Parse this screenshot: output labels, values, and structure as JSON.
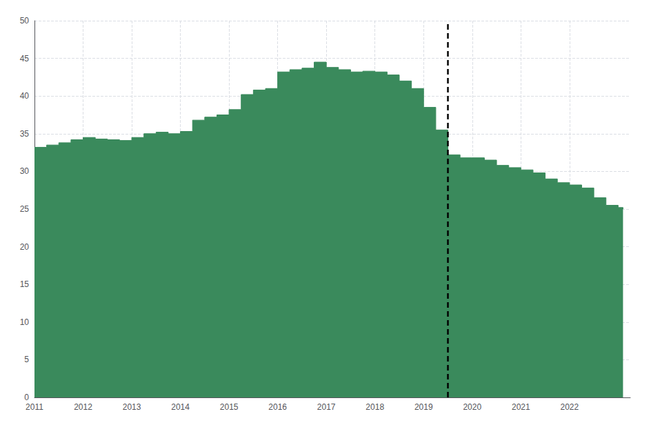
{
  "chart_data": {
    "type": "area",
    "line_style": "step",
    "color": "#3a8a5c",
    "x": [
      2011.0,
      2011.25,
      2011.5,
      2011.75,
      2012.0,
      2012.25,
      2012.5,
      2012.75,
      2013.0,
      2013.25,
      2013.5,
      2013.75,
      2014.0,
      2014.25,
      2014.5,
      2014.75,
      2015.0,
      2015.25,
      2015.5,
      2015.75,
      2016.0,
      2016.25,
      2016.5,
      2016.75,
      2017.0,
      2017.25,
      2017.5,
      2017.75,
      2018.0,
      2018.25,
      2018.5,
      2018.75,
      2019.0,
      2019.25,
      2019.5,
      2019.75,
      2020.0,
      2020.25,
      2020.5,
      2020.75,
      2021.0,
      2021.25,
      2021.5,
      2021.75,
      2022.0,
      2022.25,
      2022.5,
      2022.75,
      2023.0,
      2023.1
    ],
    "values": [
      33.2,
      33.5,
      33.8,
      34.2,
      34.5,
      34.3,
      34.2,
      34.1,
      34.5,
      35.0,
      35.2,
      35.0,
      35.3,
      36.8,
      37.2,
      37.5,
      38.2,
      40.2,
      40.8,
      41.0,
      43.2,
      43.5,
      43.7,
      44.5,
      43.8,
      43.5,
      43.2,
      43.3,
      43.2,
      42.8,
      42.0,
      41.0,
      38.5,
      35.5,
      32.2,
      31.8,
      31.8,
      31.5,
      30.8,
      30.5,
      30.2,
      29.8,
      29.0,
      28.5,
      28.2,
      27.8,
      26.5,
      25.5,
      25.2,
      25.0
    ],
    "vline": 2019.5,
    "xlim": [
      2011.0,
      2023.25
    ],
    "xticks": [
      2011,
      2012,
      2013,
      2014,
      2015,
      2016,
      2017,
      2018,
      2019,
      2020,
      2021,
      2022
    ],
    "ylim": [
      0,
      50
    ],
    "yticks": [
      0,
      5,
      10,
      15,
      20,
      25,
      30,
      35,
      40,
      45,
      50
    ],
    "grid": true
  }
}
